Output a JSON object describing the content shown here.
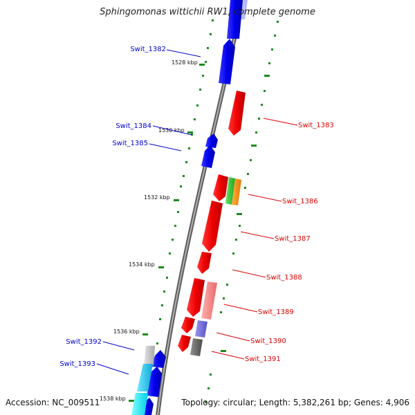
{
  "title": "Sphingomonas wittichii RW1, complete genome",
  "accession_text": "Accession: NC_009511",
  "summary_text": "Topology: circular; Length: 5,382,261 bp; Genes: 4,906",
  "colors": {
    "backbone": "#8a8a8a",
    "tick": "#1b8a1b",
    "reverse_label": "#0000cc",
    "forward_label": "#dd0000"
  },
  "kbp_markers": [
    "1528 kbp",
    "1530 kbp",
    "1532 kbp",
    "1534 kbp",
    "1536 kbp",
    "1538 kbp"
  ],
  "genes_reverse_strand": [
    "Swit_1382",
    "Swit_1384",
    "Swit_1385",
    "Swit_1392",
    "Swit_1393"
  ],
  "genes_forward_strand": [
    "Swit_1383",
    "Swit_1386",
    "Swit_1387",
    "Swit_1388",
    "Swit_1389",
    "Swit_1390",
    "Swit_1391"
  ]
}
